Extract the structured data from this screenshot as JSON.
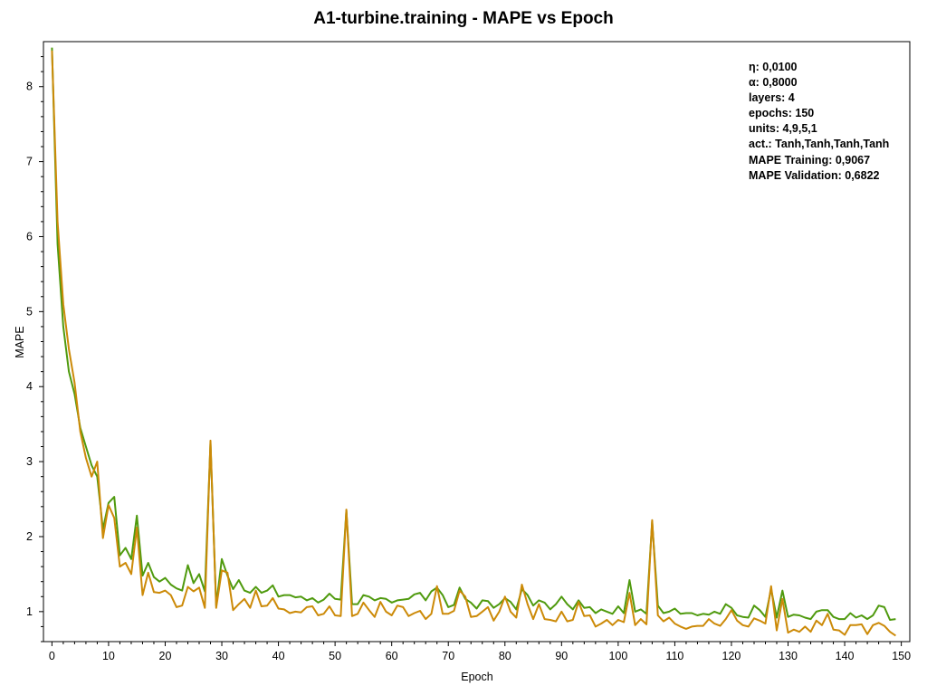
{
  "chart_data": {
    "type": "line",
    "title": "A1-turbine.training - MAPE vs Epoch",
    "xlabel": "Epoch",
    "ylabel": "MAPE",
    "xlim": [
      -1.5,
      151.5
    ],
    "ylim": [
      0.6,
      8.6
    ],
    "xticks": [
      0,
      10,
      20,
      30,
      40,
      50,
      60,
      70,
      80,
      90,
      100,
      110,
      120,
      130,
      140,
      150
    ],
    "yticks": [
      1,
      2,
      3,
      4,
      5,
      6,
      7,
      8
    ],
    "grid": false,
    "series_colors": [
      "#4f9a0e",
      "#cc8a08"
    ],
    "series": [
      {
        "values": [
          8.52,
          5.9,
          4.8,
          4.2,
          3.9,
          3.45,
          3.2,
          2.95,
          2.8,
          2.1,
          2.45,
          2.53,
          1.75,
          1.85,
          1.7,
          2.28,
          1.48,
          1.65,
          1.46,
          1.4,
          1.45,
          1.36,
          1.31,
          1.28,
          1.62,
          1.38,
          1.5,
          1.27,
          3.25,
          1.08,
          1.7,
          1.48,
          1.3,
          1.42,
          1.28,
          1.25,
          1.33,
          1.25,
          1.28,
          1.35,
          1.2,
          1.22,
          1.22,
          1.19,
          1.2,
          1.15,
          1.18,
          1.12,
          1.16,
          1.24,
          1.17,
          1.16,
          2.35,
          1.1,
          1.1,
          1.22,
          1.2,
          1.15,
          1.18,
          1.17,
          1.12,
          1.15,
          1.16,
          1.17,
          1.23,
          1.25,
          1.15,
          1.27,
          1.32,
          1.22,
          1.06,
          1.09,
          1.32,
          1.17,
          1.12,
          1.04,
          1.15,
          1.14,
          1.05,
          1.1,
          1.18,
          1.13,
          1.03,
          1.3,
          1.22,
          1.08,
          1.15,
          1.12,
          1.03,
          1.1,
          1.2,
          1.1,
          1.03,
          1.15,
          1.05,
          1.06,
          0.98,
          1.03,
          1.0,
          0.97,
          1.07,
          0.98,
          1.42,
          1.0,
          1.03,
          0.97,
          2.2,
          1.08,
          0.98,
          1.0,
          1.04,
          0.97,
          0.98,
          0.98,
          0.95,
          0.97,
          0.96,
          1.0,
          0.97,
          1.1,
          1.05,
          0.95,
          0.93,
          0.92,
          1.08,
          1.02,
          0.93,
          1.3,
          0.92,
          1.28,
          0.93,
          0.96,
          0.95,
          0.92,
          0.9,
          1.0,
          1.02,
          1.02,
          0.93,
          0.9,
          0.9,
          0.98,
          0.92,
          0.95,
          0.9,
          0.95,
          1.08,
          1.06,
          0.89,
          0.9
        ],
        "final_value": 0.9067
      },
      {
        "values": [
          8.48,
          6.2,
          5.1,
          4.5,
          4.05,
          3.4,
          3.05,
          2.8,
          3.0,
          1.98,
          2.42,
          2.25,
          1.6,
          1.65,
          1.5,
          2.12,
          1.22,
          1.52,
          1.26,
          1.25,
          1.28,
          1.22,
          1.06,
          1.08,
          1.33,
          1.27,
          1.32,
          1.05,
          3.28,
          1.05,
          1.55,
          1.52,
          1.02,
          1.1,
          1.17,
          1.05,
          1.28,
          1.07,
          1.08,
          1.18,
          1.04,
          1.03,
          0.98,
          1.0,
          0.99,
          1.06,
          1.07,
          0.95,
          0.97,
          1.07,
          0.95,
          0.94,
          2.36,
          0.94,
          0.97,
          1.12,
          1.02,
          0.93,
          1.13,
          1.0,
          0.95,
          1.08,
          1.06,
          0.94,
          0.98,
          1.01,
          0.9,
          0.97,
          1.34,
          0.97,
          0.97,
          1.01,
          1.28,
          1.2,
          0.93,
          0.94,
          1.0,
          1.06,
          0.88,
          1.0,
          1.2,
          1.0,
          0.92,
          1.36,
          1.1,
          0.9,
          1.1,
          0.9,
          0.89,
          0.87,
          1.0,
          0.87,
          0.89,
          1.13,
          0.94,
          0.95,
          0.8,
          0.84,
          0.89,
          0.82,
          0.89,
          0.86,
          1.25,
          0.82,
          0.9,
          0.83,
          2.22,
          0.95,
          0.87,
          0.92,
          0.84,
          0.8,
          0.77,
          0.8,
          0.81,
          0.81,
          0.9,
          0.84,
          0.81,
          0.9,
          1.02,
          0.88,
          0.82,
          0.8,
          0.91,
          0.88,
          0.84,
          1.34,
          0.75,
          1.17,
          0.72,
          0.76,
          0.73,
          0.8,
          0.73,
          0.88,
          0.82,
          0.97,
          0.76,
          0.75,
          0.69,
          0.82,
          0.82,
          0.83,
          0.7,
          0.82,
          0.85,
          0.81,
          0.73,
          0.68
        ],
        "final_value": 0.6822
      }
    ]
  },
  "annotation": {
    "lines": [
      "η: 0,0100",
      "α: 0,8000",
      "layers: 4",
      "epochs: 150",
      "units: 4,9,5,1",
      "act.: Tanh,Tanh,Tanh,Tanh",
      "MAPE Training: 0,9067",
      "MAPE Validation: 0,6822"
    ]
  }
}
